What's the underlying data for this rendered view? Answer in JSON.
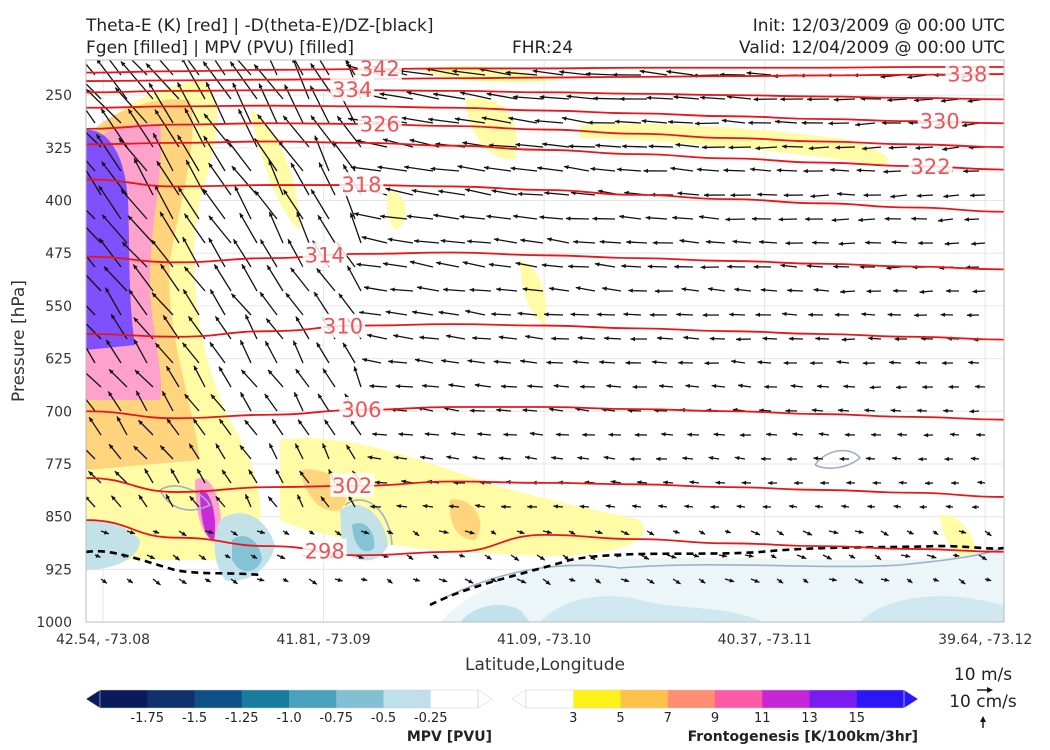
{
  "header": {
    "title_left_1": "Theta-E (K) [red] | -D(theta-E)/DZ-[black]",
    "title_left_2": "Fgen [filled] | MPV (PVU) [filled]",
    "fhr": "FHR:24",
    "init": "Init: 12/03/2009 @ 00:00 UTC",
    "valid": "Valid: 12/04/2009 @ 00:00 UTC"
  },
  "colors": {
    "theta_e": "#e8161b",
    "dthetae_dz": "#000000",
    "mpv_outline": "#9fb0c8"
  },
  "chart_data": {
    "type": "contour",
    "xlabel": "Latitude,Longitude",
    "ylabel": "Pressure [hPa]",
    "x_ticks": [
      "42.54, -73.08",
      "41.81, -73.09",
      "41.09, -73.10",
      "40.37, -73.11",
      "39.64, -73.12"
    ],
    "y_ticks": [
      250,
      325,
      400,
      475,
      550,
      625,
      700,
      775,
      850,
      925,
      1000
    ],
    "ylim": [
      1000,
      200
    ],
    "y_inverted": true,
    "grid": true,
    "theta_e_contours": [
      {
        "level": 342,
        "label": "342",
        "p": [
          218,
          216,
          214,
          213,
          212,
          212,
          211,
          211,
          211,
          210,
          210
        ]
      },
      {
        "level": 338,
        "label": "338",
        "p": [
          230,
          229,
          228,
          227,
          226,
          225,
          224,
          223,
          222,
          221,
          220
        ]
      },
      {
        "level": 334,
        "label": "334",
        "p": [
          246,
          244,
          243,
          243,
          244,
          246,
          248,
          250,
          252,
          254,
          256
        ]
      },
      {
        "level": 330,
        "label": "330",
        "p": [
          268,
          266,
          265,
          266,
          268,
          272,
          276,
          280,
          284,
          287,
          290
        ]
      },
      {
        "level": 326,
        "label": "326",
        "p": [
          298,
          292,
          290,
          291,
          294,
          299,
          305,
          311,
          316,
          320,
          324
        ]
      },
      {
        "level": 322,
        "label": "322",
        "p": [
          320,
          318,
          316,
          318,
          322,
          328,
          334,
          340,
          346,
          351,
          356
        ]
      },
      {
        "level": 318,
        "label": "318",
        "p": [
          370,
          380,
          378,
          378,
          380,
          385,
          392,
          398,
          404,
          410,
          416
        ]
      },
      {
        "level": 314,
        "label": "314",
        "p": [
          480,
          488,
          482,
          476,
          474,
          478,
          482,
          486,
          490,
          494,
          498
        ]
      },
      {
        "level": 310,
        "label": "310",
        "p": [
          590,
          594,
          586,
          578,
          576,
          578,
          582,
          586,
          590,
          594,
          598
        ]
      },
      {
        "level": 306,
        "label": "306",
        "p": [
          700,
          710,
          705,
          698,
          694,
          694,
          697,
          700,
          704,
          708,
          712
        ]
      },
      {
        "level": 302,
        "label": "302",
        "p": [
          795,
          815,
          808,
          806,
          800,
          802,
          804,
          808,
          812,
          816,
          822
        ]
      },
      {
        "level": 298,
        "label": "298",
        "p": [
          855,
          880,
          892,
          905,
          900,
          876,
          882,
          888,
          892,
          896,
          900
        ]
      }
    ],
    "mpv_colorbar": {
      "title": "MPV [PVU]",
      "levels": [
        "-1.75",
        "-1.5",
        "-1.25",
        "-1.0",
        "-0.75",
        "-0.5",
        "-0.25"
      ],
      "colors": [
        "#0a1a5c",
        "#10306e",
        "#0d4f87",
        "#177c9e",
        "#4aa1bd",
        "#82c0d4",
        "#bfe0ea",
        "#ffffff"
      ]
    },
    "fgen_colorbar": {
      "title": "Frontogenesis [K/100km/3hr]",
      "levels": [
        "3",
        "5",
        "7",
        "9",
        "11",
        "13",
        "15"
      ],
      "colors": [
        "#ffffff",
        "#fff21a",
        "#ffc34a",
        "#ff8f70",
        "#ff5aa6",
        "#c526d8",
        "#7a1cf0",
        "#2a17f5"
      ]
    },
    "wind_quiver_key": {
      "horizontal": "10 m/s",
      "vertical": "10 cm/s"
    }
  }
}
